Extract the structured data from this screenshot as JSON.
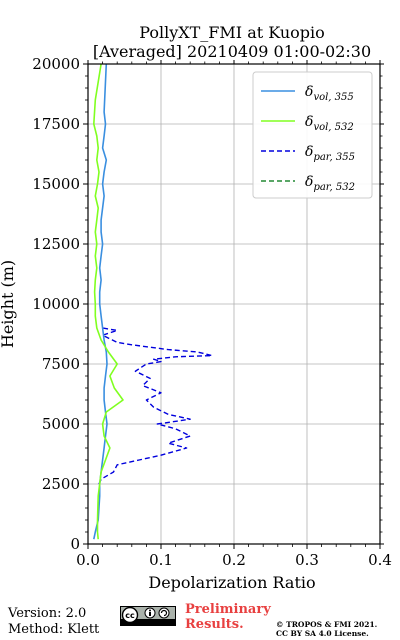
{
  "chart_data": {
    "type": "line",
    "title_line1": "PollyXT_FMI at Kuopio",
    "title_line2": "[Averaged] 20210409 01:00-02:30",
    "xlabel": "Depolarization Ratio",
    "ylabel": "Height (m)",
    "xlim": [
      0.0,
      0.4
    ],
    "ylim": [
      0,
      20000
    ],
    "x_ticks": [
      0.0,
      0.1,
      0.2,
      0.3,
      0.4
    ],
    "x_tick_labels": [
      "0.0",
      "0.1",
      "0.2",
      "0.3",
      "0.4"
    ],
    "y_ticks": [
      0,
      2500,
      5000,
      7500,
      10000,
      12500,
      15000,
      17500,
      20000
    ],
    "y_tick_labels": [
      "0",
      "2500",
      "5000",
      "7500",
      "10000",
      "12500",
      "15000",
      "17500",
      "20000"
    ],
    "grid": true,
    "legend_position": "top-right",
    "series": [
      {
        "name": "δ_vol,355",
        "legend_main": "δ",
        "legend_sub": "vol, 355",
        "color": "#3a8fe0",
        "style": "solid",
        "x": [
          0.008,
          0.01,
          0.014,
          0.016,
          0.016,
          0.018,
          0.02,
          0.022,
          0.024,
          0.026,
          0.024,
          0.022,
          0.022,
          0.024,
          0.026,
          0.025,
          0.022,
          0.02,
          0.018,
          0.016,
          0.016,
          0.018,
          0.016,
          0.018,
          0.02,
          0.018,
          0.018,
          0.02,
          0.022,
          0.02,
          0.022,
          0.025,
          0.02,
          0.022,
          0.024,
          0.022,
          0.025
        ],
        "y": [
          200,
          500,
          1000,
          2000,
          2500,
          3000,
          3500,
          4000,
          4500,
          5000,
          5500,
          6000,
          6500,
          7000,
          7500,
          8000,
          8500,
          9000,
          9500,
          10000,
          10500,
          11000,
          11500,
          12000,
          12500,
          13000,
          13500,
          14000,
          14500,
          15000,
          15500,
          16000,
          16500,
          17000,
          17500,
          18000,
          20000
        ]
      },
      {
        "name": "δ_vol,532",
        "legend_main": "δ",
        "legend_sub": "vol, 532",
        "color": "#80ff20",
        "style": "solid",
        "x": [
          0.014,
          0.013,
          0.013,
          0.014,
          0.016,
          0.018,
          0.024,
          0.03,
          0.022,
          0.02,
          0.025,
          0.048,
          0.036,
          0.03,
          0.04,
          0.028,
          0.018,
          0.012,
          0.01,
          0.01,
          0.009,
          0.01,
          0.012,
          0.01,
          0.012,
          0.01,
          0.012,
          0.014,
          0.01,
          0.013,
          0.015,
          0.012,
          0.014,
          0.012,
          0.008,
          0.01,
          0.018
        ],
        "y": [
          200,
          500,
          1000,
          2000,
          2500,
          3000,
          3500,
          4000,
          4500,
          5000,
          5500,
          6000,
          6500,
          7000,
          7500,
          8000,
          8500,
          9000,
          9500,
          10000,
          10500,
          11000,
          11500,
          12000,
          12500,
          13000,
          13500,
          14000,
          14500,
          15000,
          15500,
          16000,
          16500,
          17000,
          17500,
          18500,
          20000
        ]
      },
      {
        "name": "δ_par,355",
        "legend_main": "δ",
        "legend_sub": "par, 355",
        "color": "#0000dd",
        "style": "dashed",
        "x": [
          0.015,
          0.018,
          0.035,
          0.04,
          0.07,
          0.1,
          0.135,
          0.11,
          0.14,
          0.12,
          0.095,
          0.14,
          0.11,
          0.09,
          0.08,
          0.1,
          0.075,
          0.085,
          0.065,
          0.08,
          0.1,
          0.09,
          0.12,
          0.17,
          0.15,
          0.11,
          0.06,
          0.04,
          0.02,
          0.04,
          0.02
        ],
        "y": [
          2500,
          2700,
          3000,
          3300,
          3500,
          3700,
          4000,
          4200,
          4500,
          4800,
          5000,
          5200,
          5400,
          5700,
          6000,
          6300,
          6600,
          6900,
          7200,
          7500,
          7600,
          7700,
          7800,
          7850,
          8000,
          8100,
          8300,
          8400,
          8700,
          8900,
          9000
        ]
      },
      {
        "name": "δ_par,532",
        "legend_main": "δ",
        "legend_sub": "par, 532",
        "color": "#228833",
        "style": "dashed",
        "x": [],
        "y": []
      }
    ]
  },
  "footer": {
    "version": "Version: 2.0",
    "method": "Method: Klett",
    "preliminary_line1": "Preliminary",
    "preliminary_line2": "Results.",
    "copyright_line1": "© TROPOS & FMI 2021.",
    "copyright_line2": "CC BY SA 4.0 License."
  }
}
